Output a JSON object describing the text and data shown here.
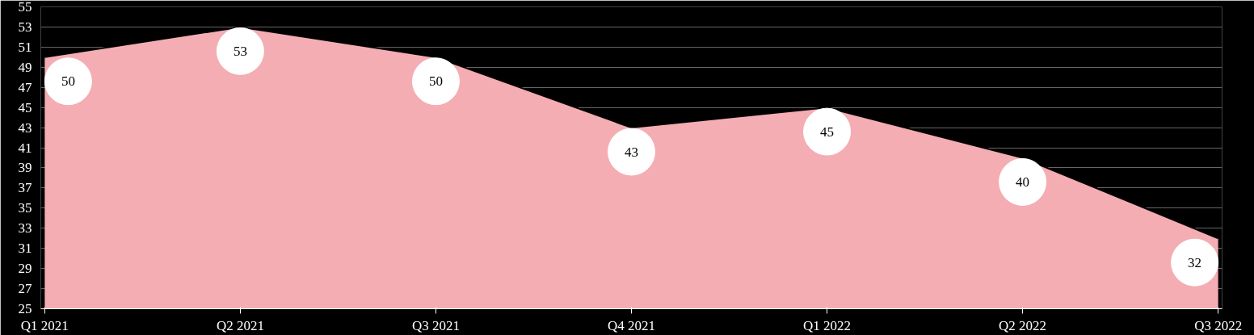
{
  "chart_data": {
    "type": "area",
    "categories": [
      "Q1 2021",
      "Q2 2021",
      "Q3 2021",
      "Q4 2021",
      "Q1 2022",
      "Q2 2022",
      "Q3 2022"
    ],
    "series": [
      {
        "color": "#f4adb2",
        "values": [
          50,
          53,
          50,
          43,
          45,
          40,
          32
        ]
      }
    ],
    "ylim": [
      25,
      55
    ],
    "yticks": [
      25,
      27,
      29,
      31,
      33,
      35,
      37,
      39,
      41,
      43,
      45,
      47,
      49,
      51,
      53,
      55
    ],
    "grid": "y",
    "data_labels": true
  }
}
